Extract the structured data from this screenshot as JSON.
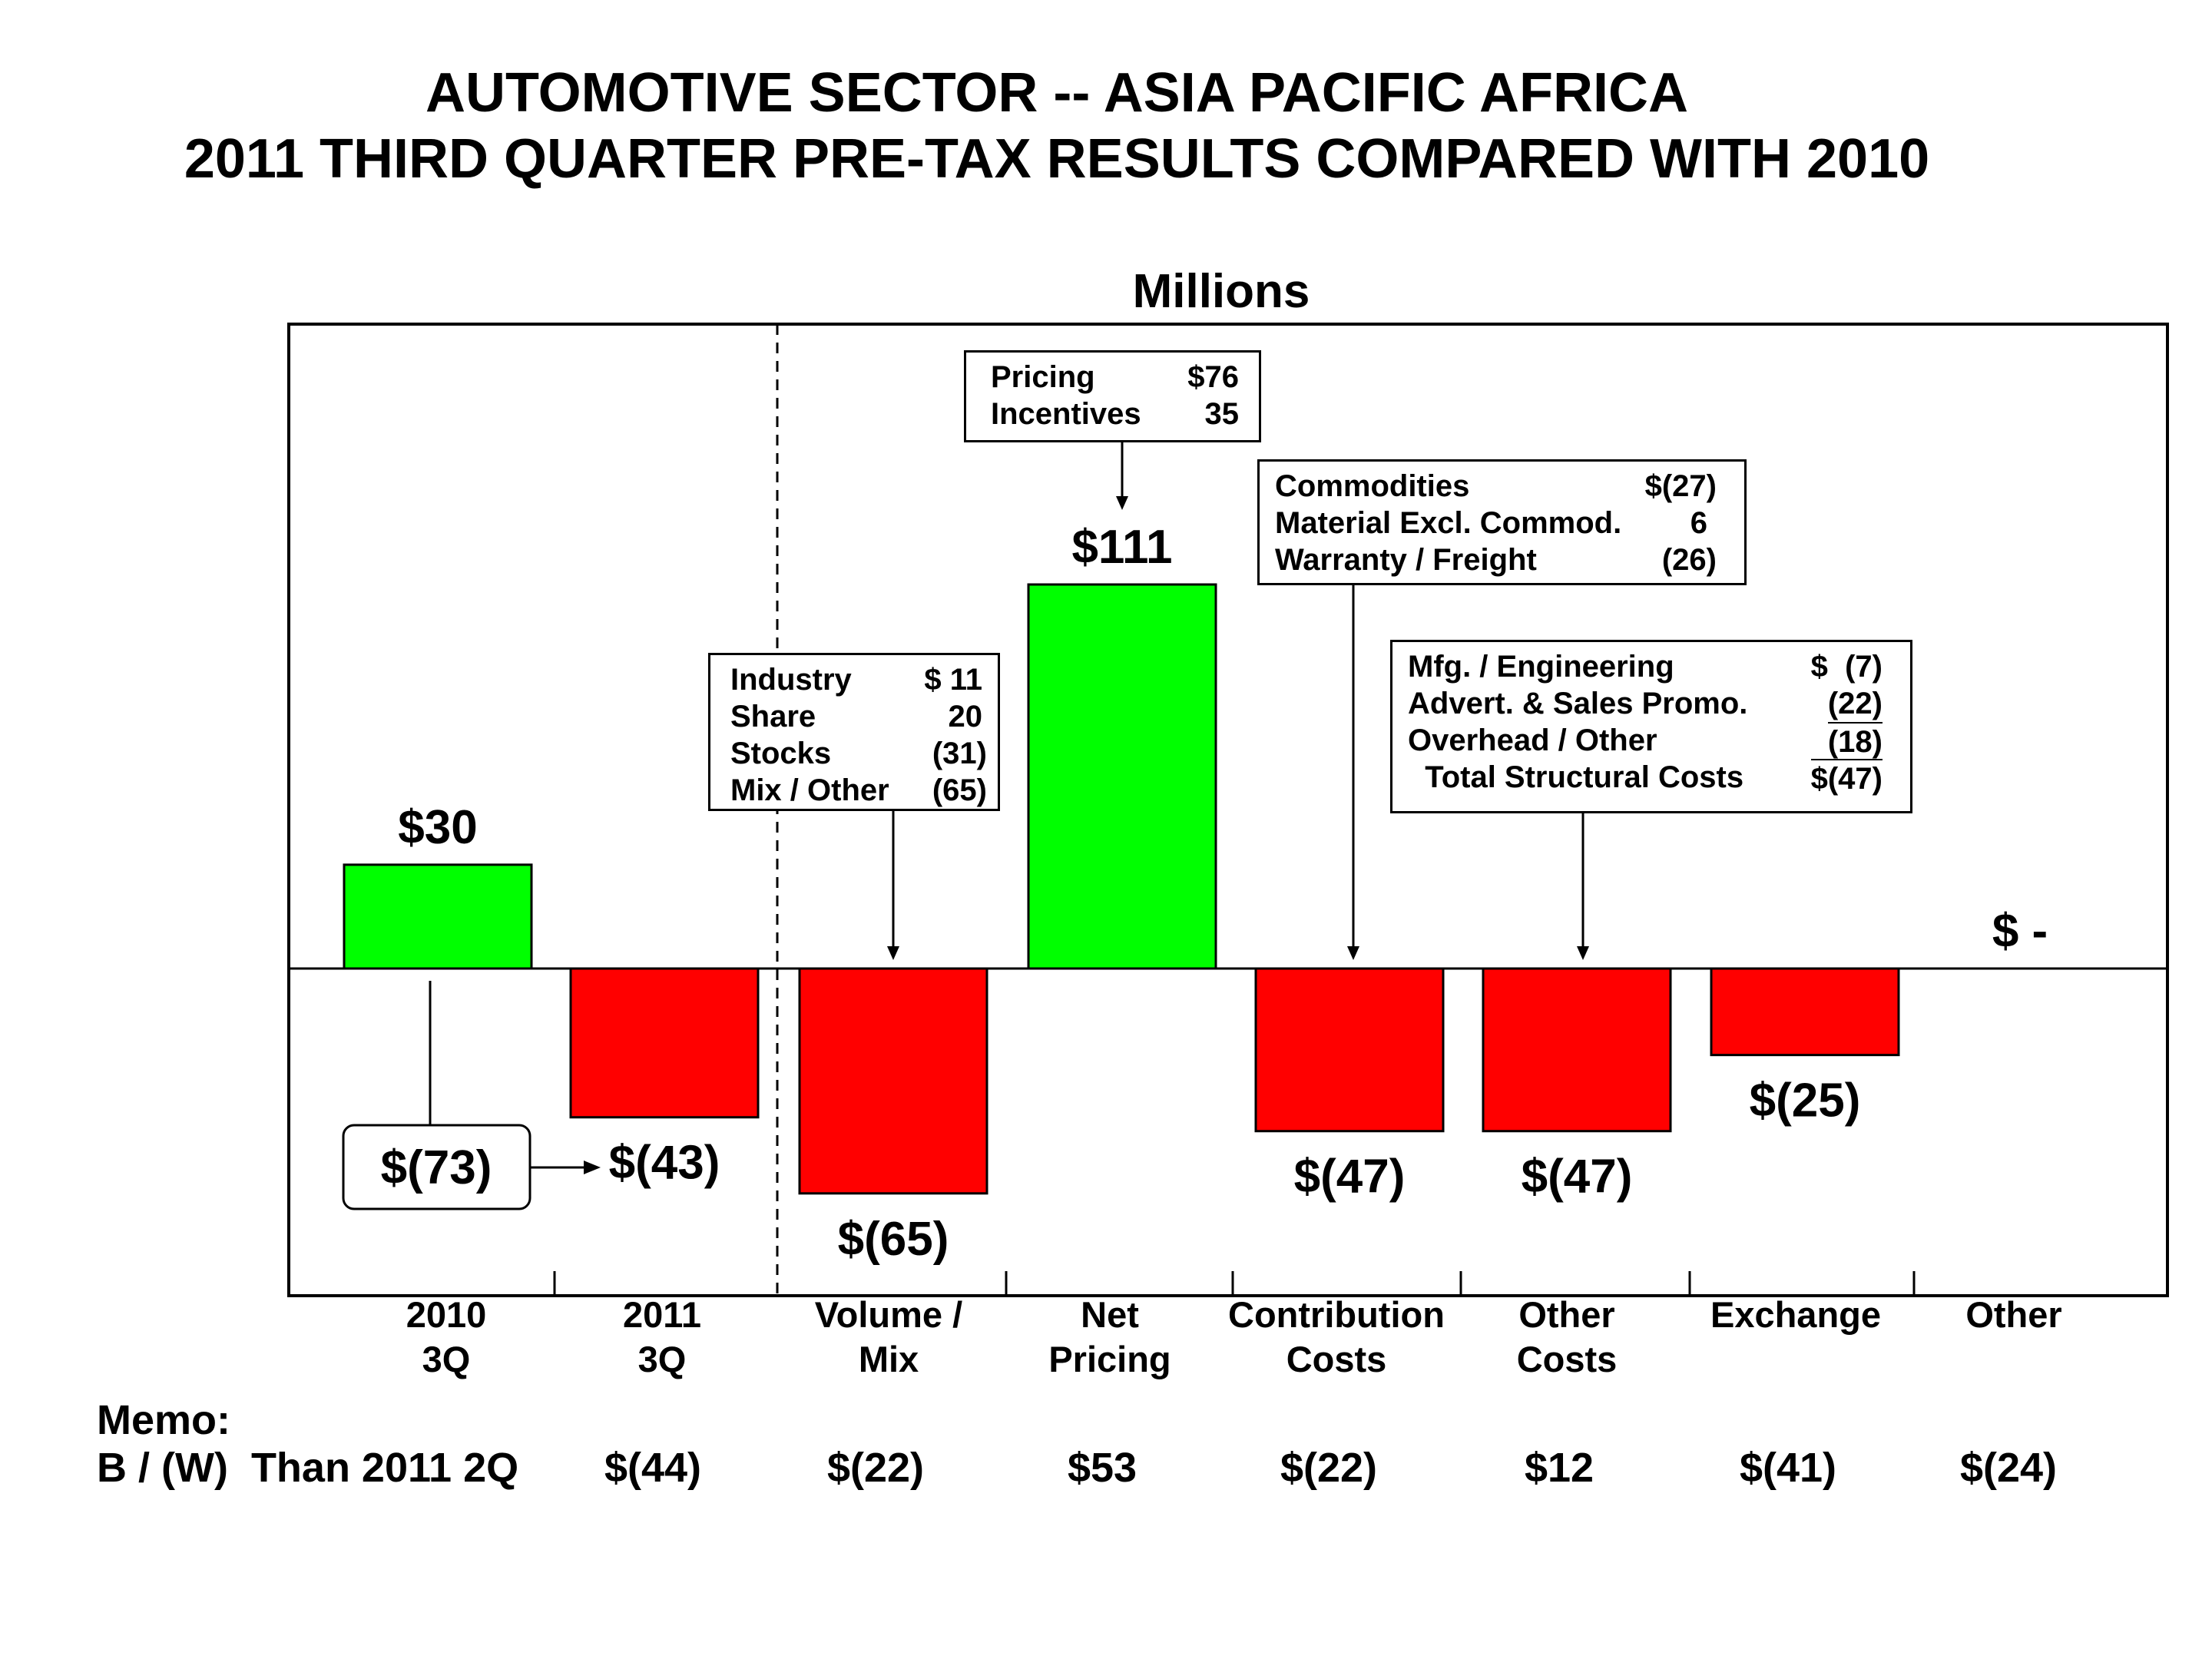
{
  "title": [
    "AUTOMOTIVE SECTOR -- ASIA PACIFIC AFRICA",
    "2011 THIRD QUARTER PRE-TAX RESULTS COMPARED WITH 2010"
  ],
  "units": "Millions",
  "colors": {
    "positive": "#00ff00",
    "negative": "#ff0000",
    "outline": "#000000"
  },
  "chart_data": {
    "type": "bar",
    "subtype": "waterfall",
    "title": "AUTOMOTIVE SECTOR -- ASIA PACIFIC AFRICA / 2011 THIRD QUARTER PRE-TAX RESULTS COMPARED WITH 2010",
    "ylabel": "Millions",
    "grid": false,
    "categories": [
      [
        "2010",
        "3Q"
      ],
      [
        "2011",
        "3Q"
      ],
      [
        "Volume /",
        "Mix"
      ],
      [
        "Net",
        "Pricing"
      ],
      [
        "Contribution",
        "Costs"
      ],
      [
        "Other",
        "Costs"
      ],
      [
        "Exchange",
        ""
      ],
      [
        "Other",
        ""
      ]
    ],
    "values": [
      30,
      -43,
      -65,
      111,
      -47,
      -47,
      -25,
      0
    ],
    "value_labels": [
      "$30",
      "$(43)",
      "$(65)",
      "$111",
      "$(47)",
      "$(47)",
      "$(25)",
      "$ -"
    ],
    "change_label": "$(73)"
  },
  "breakdowns": [
    {
      "name": "volume-mix-breakdown",
      "rows": [
        {
          "label": "Industry",
          "value": "$ 11"
        },
        {
          "label": "Share",
          "value": "20"
        },
        {
          "label": "Stocks",
          "value": "(31)"
        },
        {
          "label": "Mix / Other",
          "value": "(65)"
        }
      ]
    },
    {
      "name": "net-pricing-breakdown",
      "rows": [
        {
          "label": "Pricing",
          "value": "$76"
        },
        {
          "label": "Incentives",
          "value": "35"
        }
      ]
    },
    {
      "name": "contribution-costs-breakdown",
      "rows": [
        {
          "label": "Commodities",
          "value": "$(27)"
        },
        {
          "label": "Material Excl. Commod.",
          "value": "6"
        },
        {
          "label": "Warranty / Freight",
          "value": "(26)"
        }
      ]
    },
    {
      "name": "other-costs-breakdown",
      "rows": [
        {
          "label": "Mfg. / Engineering",
          "value": "$  (7)"
        },
        {
          "label": "Advert. & Sales Promo.",
          "value": "(22)"
        },
        {
          "label": "Overhead / Other",
          "value": "(18)"
        },
        {
          "label": "  Total Structural Costs",
          "value": "$(47)"
        }
      ]
    }
  ],
  "memo": {
    "label1": "Memo:",
    "label2": "B / (W)  Than 2011 2Q",
    "values": [
      "$(44)",
      "$(22)",
      "$53",
      "$(22)",
      "$12",
      "$(41)",
      "$(24)"
    ]
  }
}
